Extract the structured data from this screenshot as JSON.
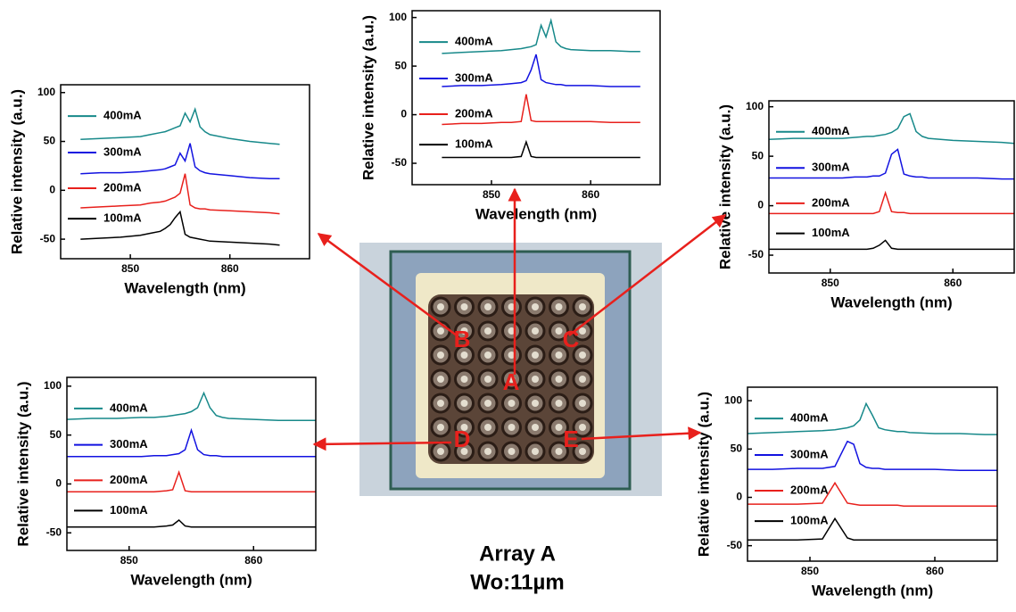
{
  "chart_data": [
    {
      "type": "line",
      "xlabel": "Wavelength (nm)",
      "ylabel": "Relative intensity (a.u.)",
      "xlim": [
        842,
        867
      ],
      "ylim": [
        -72,
        107
      ],
      "xticks": [
        850,
        860
      ],
      "yticks": [
        -50,
        0,
        50,
        100
      ],
      "x": [
        845,
        847,
        849,
        851,
        852,
        853,
        853.5,
        854,
        854.5,
        855,
        855.5,
        856,
        856.5,
        857,
        857.5,
        858,
        860,
        862,
        864,
        865
      ],
      "series": [
        {
          "name": "400mA",
          "color": "#17898a",
          "values": [
            63,
            64,
            65,
            66,
            67,
            68,
            69,
            70,
            72,
            92,
            80,
            97,
            75,
            70,
            68,
            67,
            66,
            66,
            65,
            65
          ]
        },
        {
          "name": "300mA",
          "color": "#1212e0",
          "values": [
            29,
            30,
            30,
            31,
            32,
            33,
            35,
            46,
            62,
            36,
            33,
            32,
            31,
            31,
            30,
            30,
            30,
            29,
            29,
            29
          ]
        },
        {
          "name": "200mA",
          "color": "#e8201c",
          "values": [
            -10,
            -9,
            -9,
            -8,
            -8,
            -7,
            21,
            -6,
            -7,
            -7,
            -7,
            -7,
            -7,
            -7,
            -7,
            -7,
            -7,
            -8,
            -8,
            -8
          ]
        },
        {
          "name": "100mA",
          "color": "#000000",
          "values": [
            -44,
            -44,
            -44,
            -44,
            -44,
            -43,
            -28,
            -43,
            -44,
            -44,
            -44,
            -44,
            -44,
            -44,
            -44,
            -44,
            -44,
            -44,
            -44,
            -44
          ]
        }
      ]
    },
    {
      "type": "line",
      "xlabel": "Wavelength (nm)",
      "ylabel": "Relative intensity (a.u.)",
      "xlim": [
        843,
        868
      ],
      "ylim": [
        -70,
        108
      ],
      "xticks": [
        850,
        860
      ],
      "yticks": [
        -50,
        0,
        50,
        100
      ],
      "x": [
        845,
        847,
        849,
        851,
        852,
        853,
        853.5,
        854,
        854.5,
        855,
        855.5,
        856,
        856.5,
        857,
        857.5,
        858,
        860,
        862,
        864,
        865
      ],
      "series": [
        {
          "name": "400mA",
          "color": "#17898a",
          "values": [
            52,
            53,
            54,
            55,
            57,
            59,
            60,
            62,
            64,
            66,
            79,
            70,
            83,
            65,
            60,
            57,
            53,
            50,
            48,
            47
          ]
        },
        {
          "name": "300mA",
          "color": "#1212e0",
          "values": [
            17,
            18,
            18,
            19,
            20,
            21,
            22,
            24,
            26,
            38,
            30,
            48,
            24,
            20,
            18,
            17,
            15,
            13,
            12,
            12
          ]
        },
        {
          "name": "200mA",
          "color": "#e8201c",
          "values": [
            -18,
            -17,
            -16,
            -15,
            -13,
            -12,
            -11,
            -9,
            -7,
            -3,
            17,
            -15,
            -18,
            -19,
            -19,
            -20,
            -21,
            -22,
            -23,
            -24
          ]
        },
        {
          "name": "100mA",
          "color": "#000000",
          "values": [
            -50,
            -49,
            -48,
            -46,
            -44,
            -42,
            -39,
            -35,
            -28,
            -22,
            -45,
            -48,
            -49,
            -50,
            -51,
            -52,
            -53,
            -54,
            -55,
            -56
          ]
        }
      ]
    },
    {
      "type": "line",
      "xlabel": "Wavelength (nm)",
      "ylabel": "Relative intensity (a.u.)",
      "xlim": [
        845,
        865
      ],
      "ylim": [
        -68,
        106
      ],
      "xticks": [
        850,
        860
      ],
      "yticks": [
        -50,
        0,
        50,
        100
      ],
      "x": [
        845,
        847,
        849,
        851,
        852,
        853,
        853.5,
        854,
        854.5,
        855,
        855.5,
        856,
        856.5,
        857,
        857.5,
        858,
        860,
        862,
        864,
        865
      ],
      "series": [
        {
          "name": "400mA",
          "color": "#17898a",
          "values": [
            67,
            68,
            68,
            68,
            69,
            70,
            70,
            71,
            72,
            74,
            78,
            90,
            93,
            75,
            70,
            68,
            66,
            65,
            64,
            63
          ]
        },
        {
          "name": "300mA",
          "color": "#1212e0",
          "values": [
            28,
            28,
            28,
            28,
            29,
            29,
            30,
            30,
            33,
            52,
            57,
            32,
            30,
            29,
            29,
            28,
            28,
            28,
            27,
            27
          ]
        },
        {
          "name": "200mA",
          "color": "#e8201c",
          "values": [
            -8,
            -8,
            -8,
            -8,
            -8,
            -8,
            -8,
            -6,
            13,
            -6,
            -7,
            -7,
            -8,
            -8,
            -8,
            -8,
            -8,
            -8,
            -8,
            -8
          ]
        },
        {
          "name": "100mA",
          "color": "#000000",
          "values": [
            -44,
            -44,
            -44,
            -44,
            -44,
            -44,
            -43,
            -40,
            -35,
            -43,
            -44,
            -44,
            -44,
            -44,
            -44,
            -44,
            -44,
            -44,
            -44,
            -44
          ]
        }
      ]
    },
    {
      "type": "line",
      "xlabel": "Wavelength (nm)",
      "ylabel": "Relative intensity (a.u.)",
      "xlim": [
        845,
        865
      ],
      "ylim": [
        -68,
        109
      ],
      "xticks": [
        850,
        860
      ],
      "yticks": [
        -50,
        0,
        50,
        100
      ],
      "x": [
        845,
        847,
        849,
        851,
        852,
        853,
        853.5,
        854,
        854.5,
        855,
        855.5,
        856,
        856.5,
        857,
        857.5,
        858,
        860,
        862,
        864,
        865
      ],
      "series": [
        {
          "name": "400mA",
          "color": "#17898a",
          "values": [
            66,
            67,
            67,
            68,
            68,
            69,
            70,
            71,
            72,
            74,
            78,
            93,
            78,
            70,
            68,
            67,
            66,
            65,
            65,
            65
          ]
        },
        {
          "name": "300mA",
          "color": "#1212e0",
          "values": [
            28,
            28,
            28,
            28,
            29,
            29,
            30,
            31,
            35,
            55,
            35,
            30,
            29,
            29,
            28,
            28,
            28,
            28,
            28,
            28
          ]
        },
        {
          "name": "200mA",
          "color": "#e8201c",
          "values": [
            -8,
            -8,
            -8,
            -8,
            -8,
            -7,
            -6,
            12,
            -7,
            -8,
            -8,
            -8,
            -8,
            -8,
            -8,
            -8,
            -8,
            -8,
            -8,
            -8
          ]
        },
        {
          "name": "100mA",
          "color": "#000000",
          "values": [
            -44,
            -44,
            -44,
            -44,
            -44,
            -43,
            -42,
            -37,
            -43,
            -44,
            -44,
            -44,
            -44,
            -44,
            -44,
            -44,
            -44,
            -44,
            -44,
            -44
          ]
        }
      ]
    },
    {
      "type": "line",
      "xlabel": "Wavelength (nm)",
      "ylabel": "Relative intensity (a.u.)",
      "xlim": [
        845,
        865
      ],
      "ylim": [
        -66,
        114
      ],
      "xticks": [
        850,
        860
      ],
      "yticks": [
        -50,
        0,
        50,
        100
      ],
      "x": [
        845,
        847,
        849,
        851,
        852,
        853,
        853.5,
        854,
        854.5,
        855,
        855.5,
        856,
        856.5,
        857,
        857.5,
        858,
        860,
        862,
        864,
        865
      ],
      "series": [
        {
          "name": "400mA",
          "color": "#17898a",
          "values": [
            66,
            67,
            68,
            69,
            70,
            72,
            74,
            80,
            97,
            85,
            72,
            70,
            69,
            68,
            68,
            67,
            66,
            66,
            65,
            65
          ]
        },
        {
          "name": "300mA",
          "color": "#1212e0",
          "values": [
            29,
            29,
            30,
            30,
            32,
            58,
            55,
            35,
            31,
            30,
            30,
            29,
            29,
            29,
            29,
            29,
            29,
            28,
            28,
            28
          ]
        },
        {
          "name": "200mA",
          "color": "#e8201c",
          "values": [
            -7,
            -7,
            -7,
            -6,
            15,
            -6,
            -7,
            -8,
            -8,
            -8,
            -8,
            -8,
            -8,
            -8,
            -9,
            -9,
            -9,
            -9,
            -9,
            -9
          ]
        },
        {
          "name": "100mA",
          "color": "#000000",
          "values": [
            -44,
            -44,
            -44,
            -43,
            -22,
            -42,
            -44,
            -44,
            -44,
            -44,
            -44,
            -44,
            -44,
            -44,
            -44,
            -44,
            -44,
            -44,
            -44,
            -44
          ]
        }
      ]
    }
  ],
  "photo": {
    "labels": [
      "A",
      "B",
      "C",
      "D",
      "E"
    ]
  },
  "caption": {
    "title": "Array A",
    "subtitle": "Wo:11µm"
  }
}
